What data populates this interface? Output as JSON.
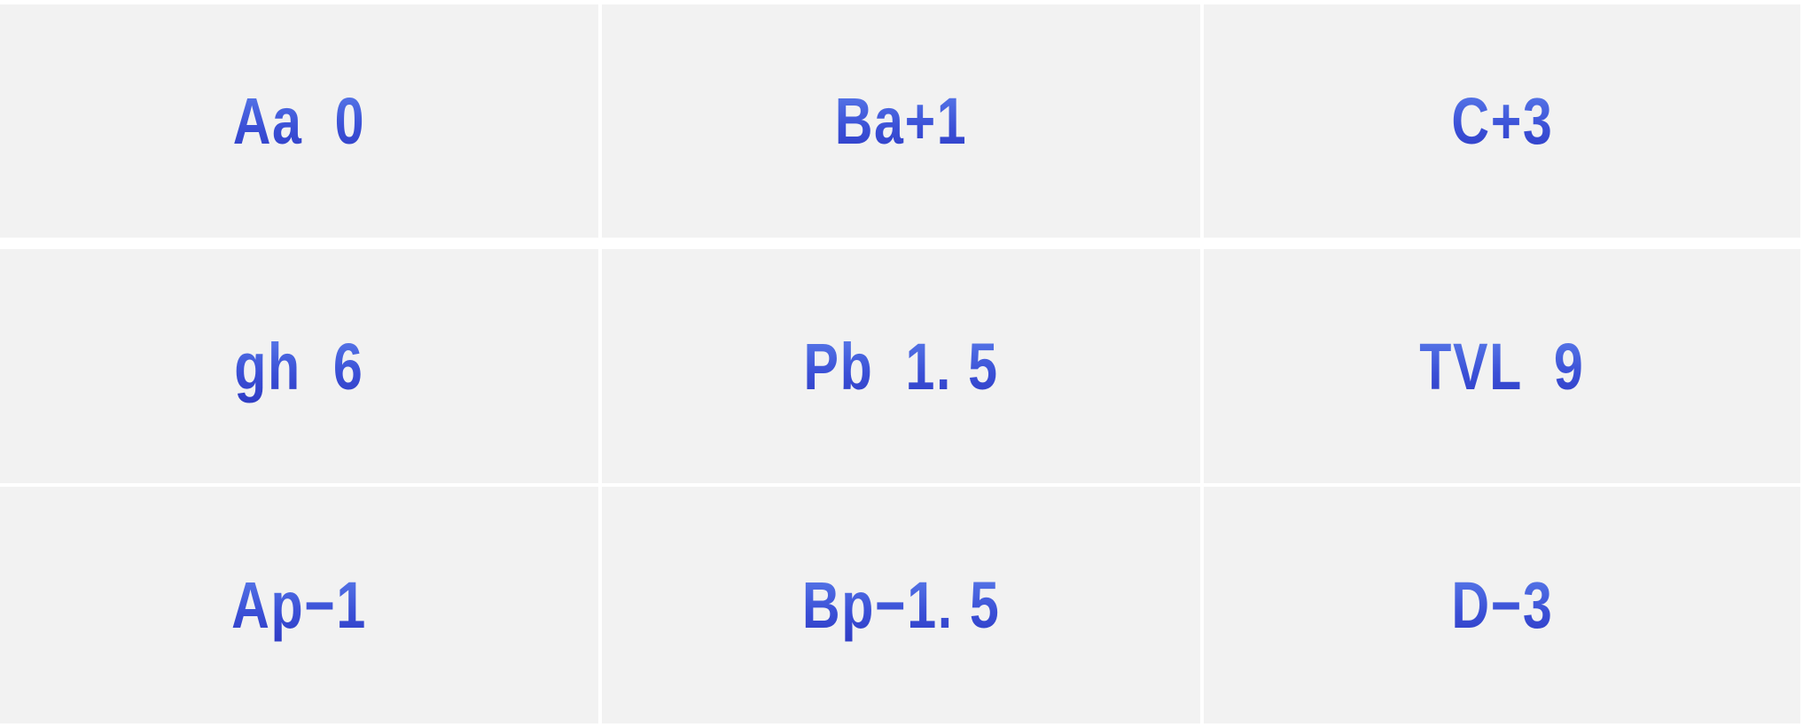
{
  "colors": {
    "cell_background": "#f2f2f2",
    "text_top": "#5e82ec",
    "text_bottom": "#2f3cc4"
  },
  "grid": [
    [
      "Aa  0",
      "Ba+1",
      "C+3"
    ],
    [
      "gh  6",
      "Pb  1. 5",
      "TVL  9"
    ],
    [
      "Ap−1",
      "Bp−1. 5",
      "D−3"
    ]
  ]
}
